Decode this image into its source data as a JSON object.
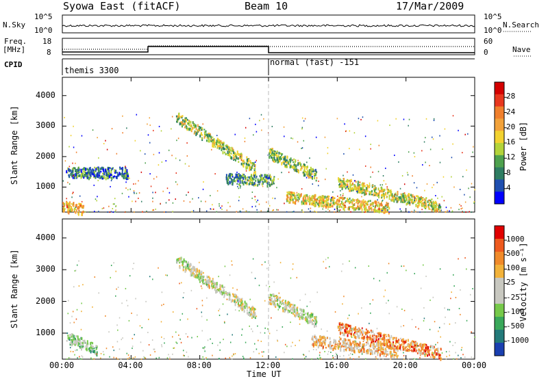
{
  "header": {
    "station": "Syowa East (fitACF)",
    "beam": "Beam 10",
    "date": "17/Mar/2009"
  },
  "strips": {
    "nsky_label": "N.Sky",
    "nsearch_label": "N.Search",
    "noise_ticks_left": [
      "10^5",
      "10^0"
    ],
    "noise_ticks_right": [
      "10^5",
      "10^0"
    ],
    "freq_label_1": "Freq.",
    "freq_label_2": "[MHz]",
    "freq_ticks": [
      "18",
      "8"
    ],
    "nave_label": "Nave",
    "nave_ticks": [
      "60",
      "0"
    ],
    "cpid_label": "CPID",
    "cpid_segments": [
      "themis 3300",
      "normal (fast) -151"
    ]
  },
  "chart_data": [
    {
      "type": "heatmap",
      "name": "power",
      "ylabel": "Slant Range [km]",
      "yticks": [
        "4000",
        "3000",
        "2000",
        "1000"
      ],
      "ylim": [
        180,
        4600
      ],
      "xlim": [
        0,
        24
      ],
      "colorbar": {
        "label": "Power [dB]",
        "ticks": [
          "28",
          "24",
          "20",
          "16",
          "12",
          "8",
          "4"
        ],
        "colors": [
          "#0000ff",
          "#1f4fb0",
          "#2e7d62",
          "#4ea14e",
          "#b3d33a",
          "#f2d230",
          "#f2a23a",
          "#f07f2c",
          "#e8371e",
          "#d40000"
        ]
      },
      "features": [
        {
          "t0": 6.6,
          "t1": 11.2,
          "r0": 3350,
          "r1": 1650,
          "value": 14
        },
        {
          "t0": 12.0,
          "t1": 14.8,
          "r0": 2150,
          "r1": 1400,
          "value": 13
        },
        {
          "t0": 0.2,
          "t1": 3.8,
          "r0": 1500,
          "r1": 1500,
          "value": 8
        },
        {
          "t0": 9.5,
          "t1": 12.3,
          "r0": 1300,
          "r1": 1250,
          "value": 10
        },
        {
          "t0": 13.0,
          "t1": 19.0,
          "r0": 700,
          "r1": 350,
          "value": 18
        },
        {
          "t0": 16.0,
          "t1": 22.0,
          "r0": 1200,
          "r1": 380,
          "value": 16
        },
        {
          "t0": 0.0,
          "t1": 1.2,
          "r0": 400,
          "r1": 300,
          "value": 20
        }
      ]
    },
    {
      "type": "heatmap",
      "name": "velocity",
      "ylabel": "Slant Range [km]",
      "yticks": [
        "4000",
        "3000",
        "2000",
        "1000"
      ],
      "ylim": [
        180,
        4600
      ],
      "xlim": [
        0,
        24
      ],
      "xticks": [
        "00:00",
        "04:00",
        "08:00",
        "12:00",
        "16:00",
        "20:00",
        "00:00"
      ],
      "xlabel": "Time UT",
      "colorbar": {
        "label": "Velocity [m s⁻¹]",
        "ticks": [
          "1000",
          "500",
          "100",
          "25",
          "-25",
          "-100",
          "-500",
          "-1000"
        ],
        "colors": [
          "#1a3fb0",
          "#237a7a",
          "#3aa85a",
          "#76c94a",
          "#c8c8c0",
          "#c8c8c0",
          "#f2b23a",
          "#f08a2a",
          "#ee5a1e",
          "#e00000"
        ]
      },
      "features": [
        {
          "t0": 6.6,
          "t1": 11.2,
          "r0": 3350,
          "r1": 1650,
          "value": 0
        },
        {
          "t0": 12.0,
          "t1": 14.8,
          "r0": 2150,
          "r1": 1400,
          "value": 0
        },
        {
          "t0": 14.5,
          "t1": 19.5,
          "r0": 800,
          "r1": 450,
          "value": 150
        },
        {
          "t0": 16.0,
          "t1": 22.0,
          "r0": 1200,
          "r1": 380,
          "value": 300
        },
        {
          "t0": 0.2,
          "t1": 2.0,
          "r0": 900,
          "r1": 500,
          "value": -150
        }
      ]
    }
  ]
}
